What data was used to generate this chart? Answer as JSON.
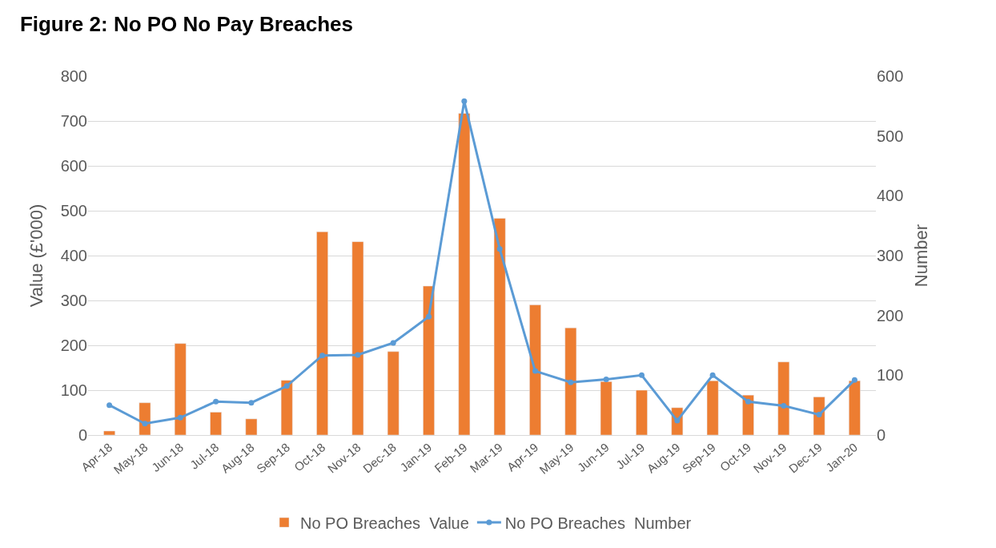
{
  "chart_data": {
    "type": "bar",
    "title": "Figure 2: No PO No Pay Breaches",
    "ylabel": "Value (£'000)",
    "y2label": "Number",
    "categories": [
      "Apr-18",
      "May-18",
      "Jun-18",
      "Jul-18",
      "Aug-18",
      "Sep-18",
      "Oct-18",
      "Nov-18",
      "Dec-18",
      "Jan-19",
      "Feb-19",
      "Mar-19",
      "Apr-19",
      "May-19",
      "Jun-19",
      "Jul-19",
      "Aug-19",
      "Sep-19",
      "Oct-19",
      "Nov-19",
      "Dec-19",
      "Jan-20"
    ],
    "series": [
      {
        "name": "No PO Breaches  Value",
        "color": "#ed7d31",
        "values": [
          9,
          72,
          204,
          51,
          36,
          122,
          453,
          431,
          186,
          332,
          717,
          483,
          290,
          239,
          119,
          100,
          61,
          121,
          89,
          163,
          85,
          121
        ]
      },
      {
        "name": "No PO Breaches  Number",
        "type": "line",
        "axis": "y2",
        "color": "#5b9bd5",
        "marker": "circle",
        "values": [
          50,
          19,
          29,
          56,
          54,
          82,
          133,
          134,
          154,
          198,
          558,
          311,
          107,
          88,
          93,
          100,
          24,
          100,
          56,
          49,
          34,
          92
        ]
      }
    ],
    "ylim": [
      0,
      800
    ],
    "yticks": [
      0,
      100,
      200,
      300,
      400,
      500,
      600,
      700,
      800
    ],
    "y2lim": [
      0,
      600
    ],
    "y2ticks": [
      0,
      100,
      200,
      300,
      400,
      500,
      600
    ],
    "grid": "y",
    "legend": "bottom"
  }
}
